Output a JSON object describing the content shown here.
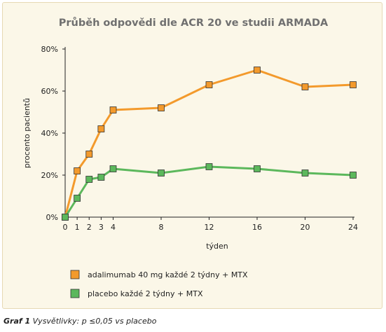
{
  "chart_data": {
    "type": "line",
    "title": "Průběh odpovědi dle ACR 20 ve studii ARMADA",
    "xlabel": "týden",
    "ylabel": "procento pacientů",
    "xlim": [
      0,
      24
    ],
    "ylim": [
      0,
      80
    ],
    "x_ticks": [
      0,
      1,
      2,
      3,
      4,
      8,
      12,
      16,
      20,
      24
    ],
    "y_ticks": [
      0,
      20,
      40,
      60,
      80
    ],
    "y_tick_labels": [
      "0%",
      "20%",
      "40%",
      "60%",
      "80%"
    ],
    "grid": false,
    "legend_position": "bottom",
    "series": [
      {
        "name": "adalimumab 40 mg každé 2 týdny + MTX",
        "color": "#f39a2c",
        "x": [
          0,
          1,
          2,
          3,
          4,
          8,
          12,
          16,
          20,
          24
        ],
        "y": [
          0,
          22,
          30,
          42,
          51,
          52,
          63,
          70,
          62,
          63
        ]
      },
      {
        "name": "placebo každé 2 týdny + MTX",
        "color": "#5cb85c",
        "x": [
          0,
          1,
          2,
          3,
          4,
          8,
          12,
          16,
          20,
          24
        ],
        "y": [
          0,
          9,
          18,
          19,
          23,
          21,
          24,
          23,
          21,
          20
        ]
      }
    ]
  },
  "caption": {
    "label": "Graf 1",
    "text": " Vysvětlivky: p ≤0,05 vs placebo"
  }
}
